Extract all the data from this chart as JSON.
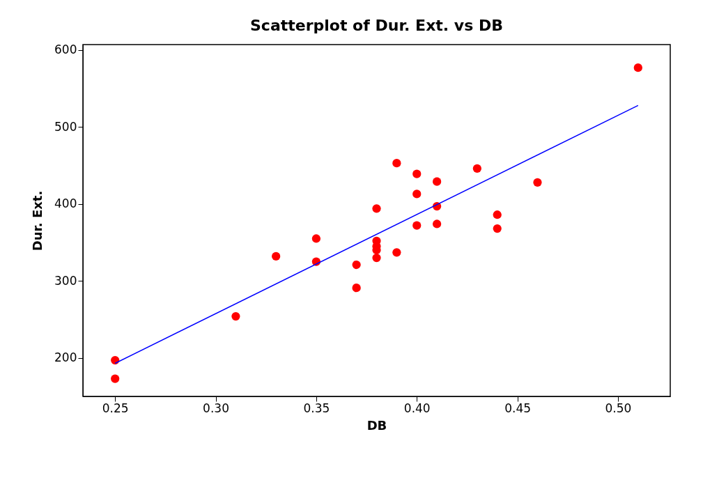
{
  "chart_data": {
    "type": "scatter",
    "title": "Scatterplot of Dur. Ext. vs DB",
    "xlabel": "DB",
    "ylabel": "Dur. Ext.",
    "grid": false,
    "xlim": [
      0.234,
      0.526
    ],
    "xticks": [
      {
        "value": 0.25,
        "label": "0.25"
      },
      {
        "value": 0.3,
        "label": "0.30"
      },
      {
        "value": 0.35,
        "label": "0.35"
      },
      {
        "value": 0.4,
        "label": "0.40"
      },
      {
        "value": 0.45,
        "label": "0.45"
      },
      {
        "value": 0.5,
        "label": "0.50"
      }
    ],
    "ylim": [
      150,
      607
    ],
    "yticks": [
      200,
      300,
      400,
      500,
      600
    ],
    "series": [
      {
        "color": "#ff0000",
        "marker": "circle",
        "x": [
          0.25,
          0.25,
          0.31,
          0.33,
          0.35,
          0.35,
          0.37,
          0.37,
          0.38,
          0.38,
          0.38,
          0.38,
          0.38,
          0.39,
          0.39,
          0.4,
          0.4,
          0.4,
          0.41,
          0.41,
          0.41,
          0.43,
          0.44,
          0.44,
          0.46,
          0.51
        ],
        "values": [
          197,
          173,
          254,
          332,
          355,
          325,
          321,
          291,
          394,
          352,
          345,
          340,
          330,
          453,
          337,
          439,
          413,
          372,
          429,
          397,
          374,
          446,
          386,
          368,
          428,
          577
        ]
      },
      {
        "type": "line",
        "color": "#0000ff",
        "x": [
          0.25,
          0.51
        ],
        "values": [
          193,
          528
        ]
      }
    ]
  }
}
